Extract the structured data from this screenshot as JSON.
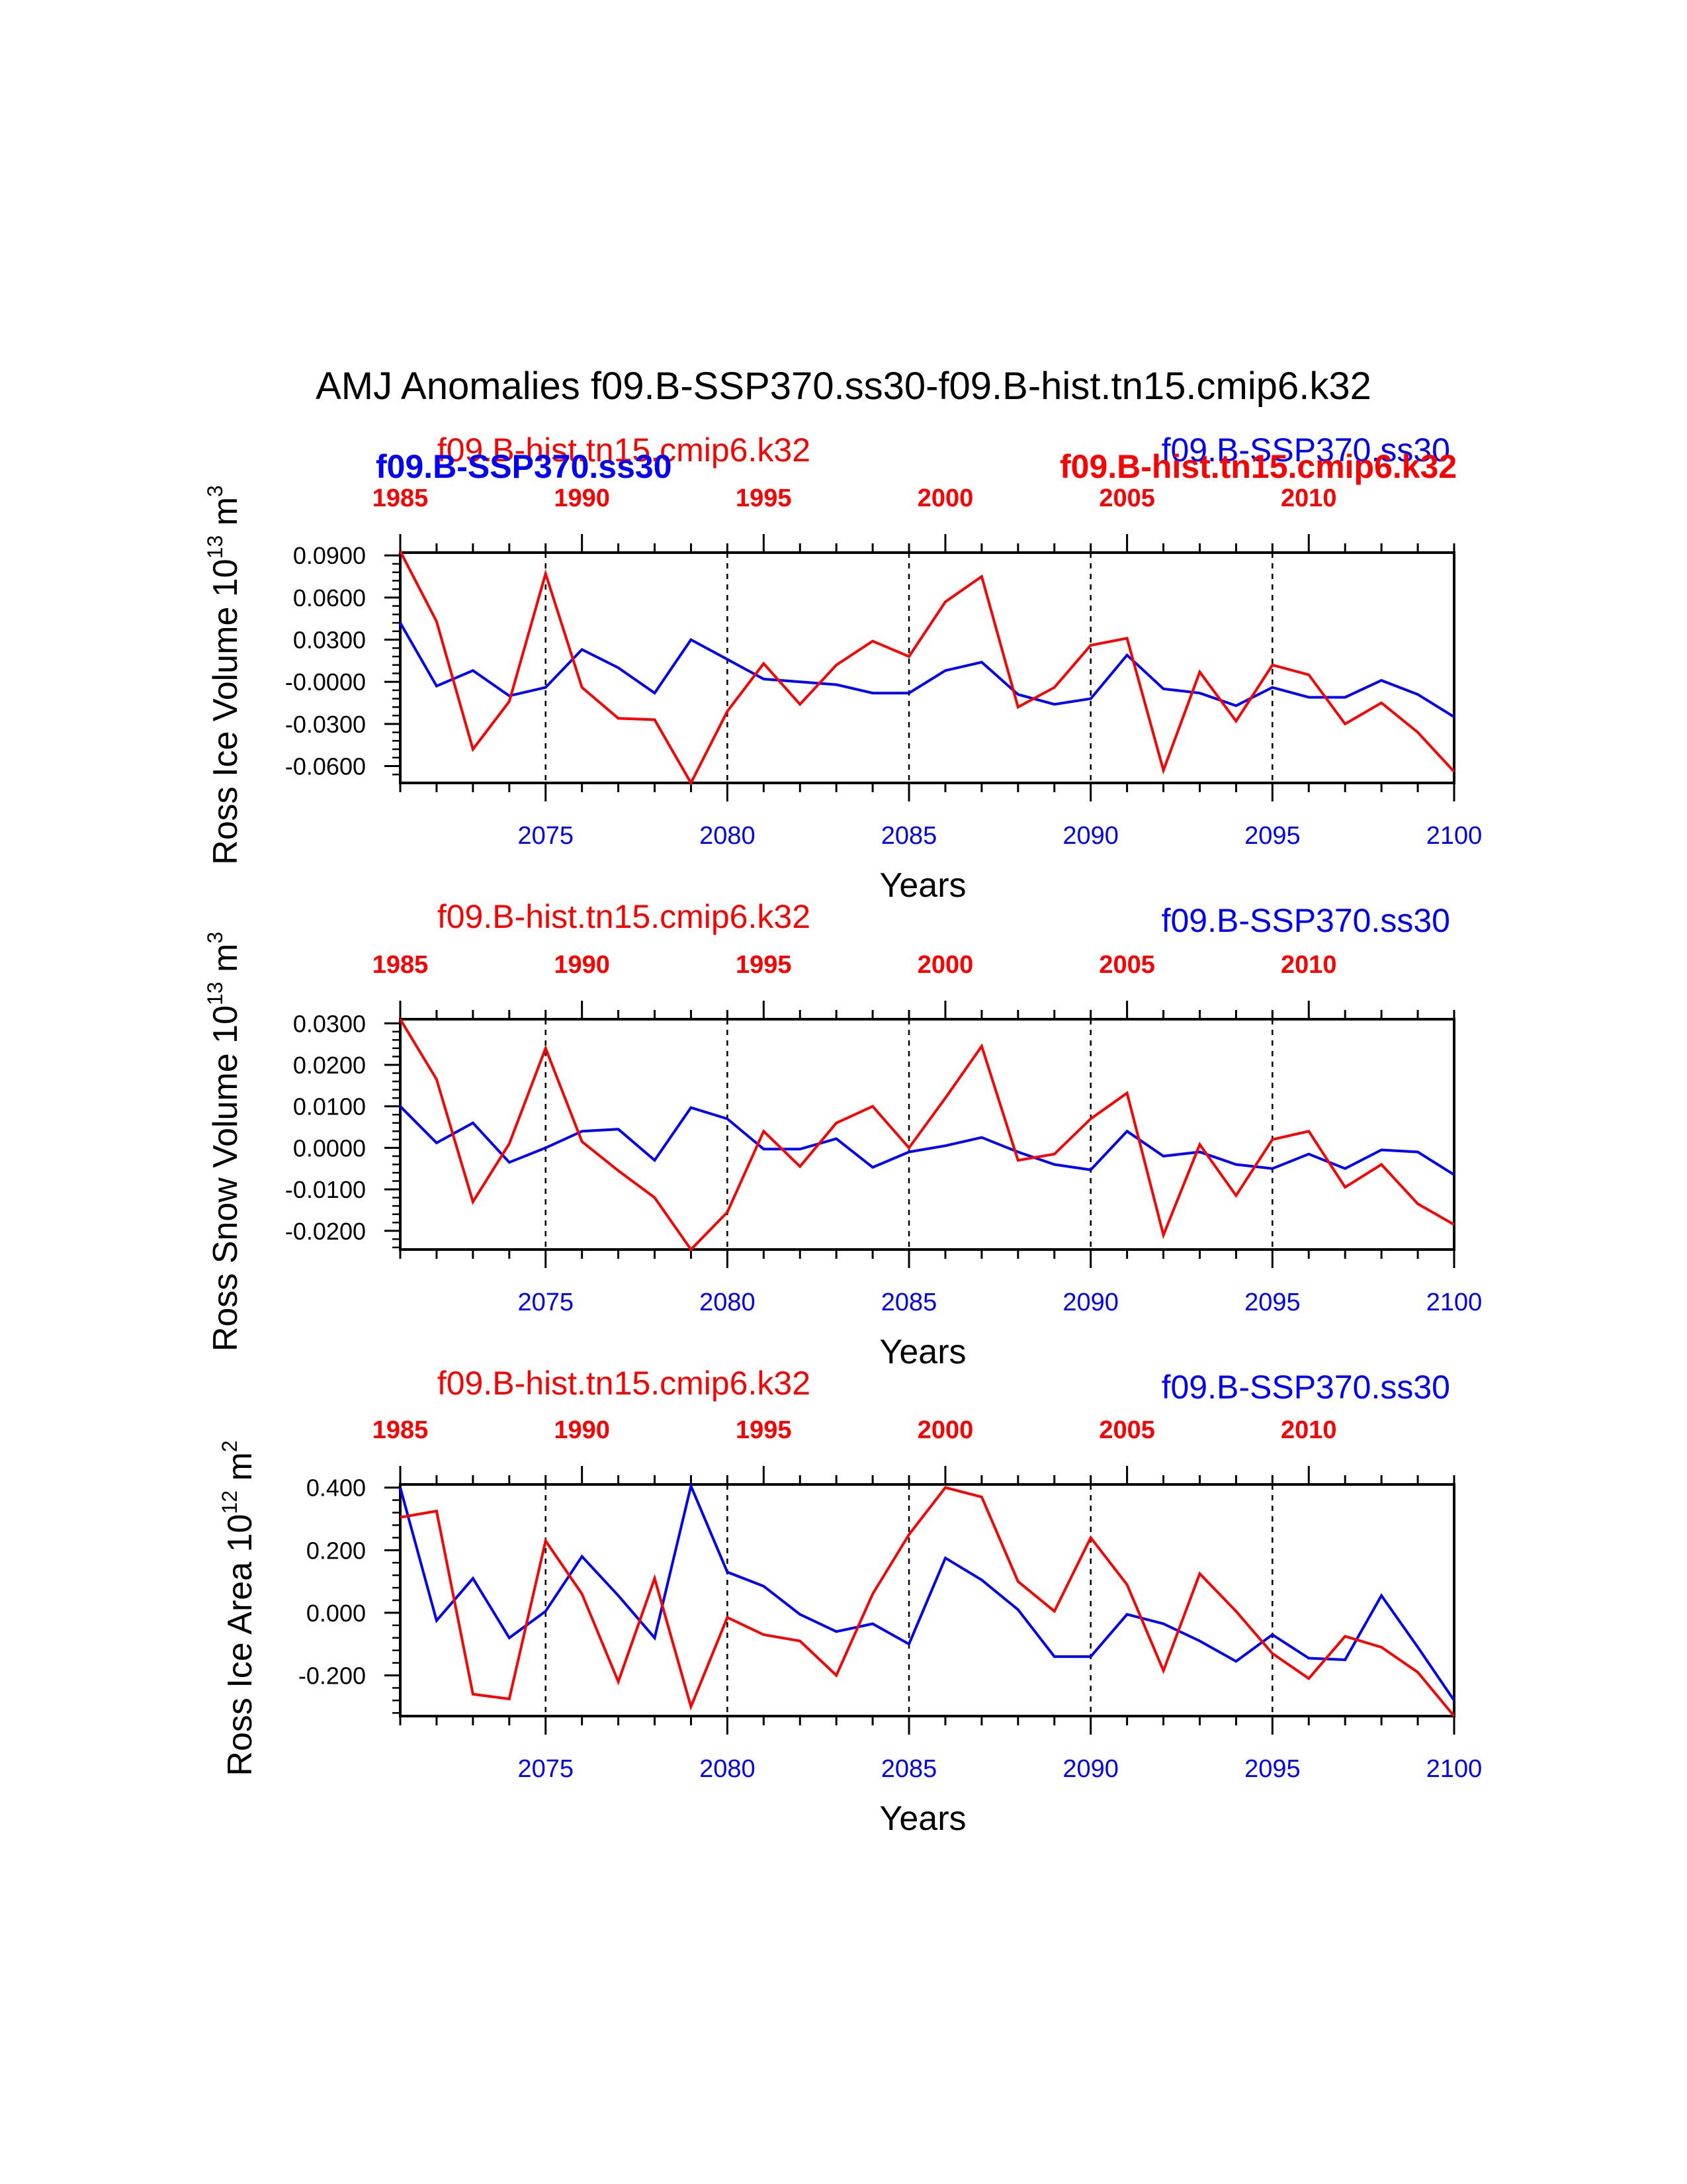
{
  "title": "AMJ Anomalies f09.B-SSP370.ss30-f09.B-hist.tn15.cmip6.k32",
  "colors": {
    "ssp": "#0000ff",
    "hist": "#ff0000",
    "axis": "#000000"
  },
  "xlabel": "Years",
  "top_axis": {
    "ticks": [
      1985,
      1990,
      1995,
      2000,
      2005,
      2010
    ],
    "labels": [
      "1985",
      "1990",
      "1995",
      "2000",
      "2005",
      "2010"
    ]
  },
  "bottom_axis": {
    "ticks": [
      2075,
      2080,
      2085,
      2090,
      2095,
      2100
    ],
    "labels": [
      "2075",
      "2080",
      "2085",
      "2090",
      "2095",
      "2100"
    ]
  },
  "chart_data": [
    {
      "type": "line",
      "ylabel_main": "Ross Ice Volume 10",
      "ylabel_exp": "13",
      "ylabel_unit": " m",
      "ylabel_unit_exp": "3",
      "ylim": [
        -0.072,
        0.092
      ],
      "yticks": [
        0.09,
        0.06,
        0.03,
        0.0,
        -0.03,
        -0.06
      ],
      "ytick_labels": [
        "0.0900",
        "0.0600",
        "0.0300",
        "-0.0000",
        "-0.0300",
        "-0.0600"
      ],
      "xlim": [
        2071,
        2100
      ],
      "x_top_lim": [
        1985,
        2014
      ],
      "legend_hist": "f09.B-hist.tn15.cmip6.k32",
      "legend_ssp": "f09.B-SSP370.ss30",
      "legend_hist_bold": "f09.B-hist.tn15.cmip6.k32",
      "legend_ssp_bold": "f09.B-SSP370.ss30",
      "series": [
        {
          "name": "f09.B-SSP370.ss30",
          "color": "#0000ff",
          "x": [
            2071,
            2072,
            2073,
            2074,
            2075,
            2076,
            2077,
            2078,
            2079,
            2080,
            2081,
            2082,
            2083,
            2084,
            2085,
            2086,
            2087,
            2088,
            2089,
            2090,
            2091,
            2092,
            2093,
            2094,
            2095,
            2096,
            2097,
            2098,
            2099,
            2100
          ],
          "values": [
            0.042,
            -0.003,
            0.008,
            -0.01,
            -0.004,
            0.023,
            0.01,
            -0.008,
            0.03,
            0.016,
            0.002,
            0.0,
            -0.002,
            -0.008,
            -0.008,
            0.008,
            0.014,
            -0.009,
            -0.016,
            -0.012,
            0.019,
            -0.005,
            -0.008,
            -0.017,
            -0.004,
            -0.011,
            -0.011,
            0.001,
            -0.009,
            -0.025
          ]
        },
        {
          "name": "f09.B-hist.tn15.cmip6.k32",
          "color": "#ff0000",
          "x": [
            2071,
            2072,
            2073,
            2074,
            2075,
            2076,
            2077,
            2078,
            2079,
            2080,
            2081,
            2082,
            2083,
            2084,
            2085,
            2086,
            2087,
            2088,
            2089,
            2090,
            2091,
            2092,
            2093,
            2094,
            2095,
            2096,
            2097,
            2098,
            2099,
            2100
          ],
          "values": [
            0.093,
            0.043,
            -0.048,
            -0.014,
            0.077,
            -0.004,
            -0.026,
            -0.027,
            -0.072,
            -0.021,
            0.013,
            -0.016,
            0.012,
            0.029,
            0.018,
            0.057,
            0.075,
            -0.018,
            -0.004,
            0.026,
            0.031,
            -0.063,
            0.007,
            -0.028,
            0.012,
            0.005,
            -0.03,
            -0.015,
            -0.036,
            -0.064
          ]
        }
      ]
    },
    {
      "type": "line",
      "ylabel_main": "Ross Snow Volume 10",
      "ylabel_exp": "13",
      "ylabel_unit": " m",
      "ylabel_unit_exp": "3",
      "ylim": [
        -0.0245,
        0.031
      ],
      "yticks": [
        0.03,
        0.02,
        0.01,
        0.0,
        -0.01,
        -0.02
      ],
      "ytick_labels": [
        "0.0300",
        "0.0200",
        "0.0100",
        "0.0000",
        "-0.0100",
        "-0.0200"
      ],
      "xlim": [
        2071,
        2100
      ],
      "x_top_lim": [
        1985,
        2014
      ],
      "legend_hist": "f09.B-hist.tn15.cmip6.k32",
      "legend_ssp": "f09.B-SSP370.ss30",
      "series": [
        {
          "name": "f09.B-SSP370.ss30",
          "color": "#0000ff",
          "x": [
            2071,
            2072,
            2073,
            2074,
            2075,
            2076,
            2077,
            2078,
            2079,
            2080,
            2081,
            2082,
            2083,
            2084,
            2085,
            2086,
            2087,
            2088,
            2089,
            2090,
            2091,
            2092,
            2093,
            2094,
            2095,
            2096,
            2097,
            2098,
            2099,
            2100
          ],
          "values": [
            0.01,
            0.0012,
            0.006,
            -0.0035,
            0.0,
            0.004,
            0.0045,
            -0.003,
            0.0097,
            0.007,
            -0.0003,
            -0.0003,
            0.0022,
            -0.0047,
            -0.001,
            0.0005,
            0.0025,
            -0.001,
            -0.004,
            -0.0053,
            0.004,
            -0.002,
            -0.001,
            -0.004,
            -0.005,
            -0.0015,
            -0.005,
            -0.0005,
            -0.001,
            -0.0065
          ]
        },
        {
          "name": "f09.B-hist.tn15.cmip6.k32",
          "color": "#ff0000",
          "x": [
            2071,
            2072,
            2073,
            2074,
            2075,
            2076,
            2077,
            2078,
            2079,
            2080,
            2081,
            2082,
            2083,
            2084,
            2085,
            2086,
            2087,
            2088,
            2089,
            2090,
            2091,
            2092,
            2093,
            2094,
            2095,
            2096,
            2097,
            2098,
            2099,
            2100
          ],
          "values": [
            0.031,
            0.0165,
            -0.013,
            0.001,
            0.024,
            0.0015,
            -0.0055,
            -0.012,
            -0.0245,
            -0.0155,
            0.004,
            -0.0045,
            0.006,
            0.01,
            0.0,
            0.012,
            0.0245,
            -0.003,
            -0.0015,
            0.007,
            0.0132,
            -0.021,
            0.0008,
            -0.0115,
            0.002,
            0.004,
            -0.0095,
            -0.004,
            -0.0135,
            -0.0185
          ]
        }
      ]
    },
    {
      "type": "line",
      "ylabel_main": "Ross Ice Area 10",
      "ylabel_exp": "12",
      "ylabel_unit": " m",
      "ylabel_unit_exp": "2",
      "ylim": [
        -0.33,
        0.41
      ],
      "yticks": [
        0.4,
        0.2,
        0.0,
        -0.2
      ],
      "ytick_labels": [
        "0.400",
        "0.200",
        "0.000",
        "-0.200"
      ],
      "xlim": [
        2071,
        2100
      ],
      "x_top_lim": [
        1985,
        2014
      ],
      "legend_hist": "f09.B-hist.tn15.cmip6.k32",
      "legend_ssp": "f09.B-SSP370.ss30",
      "series": [
        {
          "name": "f09.B-SSP370.ss30",
          "color": "#0000ff",
          "x": [
            2071,
            2072,
            2073,
            2074,
            2075,
            2076,
            2077,
            2078,
            2079,
            2080,
            2081,
            2082,
            2083,
            2084,
            2085,
            2086,
            2087,
            2088,
            2089,
            2090,
            2091,
            2092,
            2093,
            2094,
            2095,
            2096,
            2097,
            2098,
            2099,
            2100
          ],
          "values": [
            0.4,
            -0.025,
            0.11,
            -0.08,
            0.005,
            0.18,
            0.055,
            -0.08,
            0.405,
            0.13,
            0.085,
            -0.005,
            -0.06,
            -0.035,
            -0.1,
            0.175,
            0.105,
            0.01,
            -0.14,
            -0.14,
            -0.005,
            -0.035,
            -0.09,
            -0.155,
            -0.07,
            -0.145,
            -0.15,
            0.055,
            -0.11,
            -0.28
          ]
        },
        {
          "name": "f09.B-hist.tn15.cmip6.k32",
          "color": "#ff0000",
          "x": [
            2071,
            2072,
            2073,
            2074,
            2075,
            2076,
            2077,
            2078,
            2079,
            2080,
            2081,
            2082,
            2083,
            2084,
            2085,
            2086,
            2087,
            2088,
            2089,
            2090,
            2091,
            2092,
            2093,
            2094,
            2095,
            2096,
            2097,
            2098,
            2099,
            2100
          ],
          "values": [
            0.305,
            0.325,
            -0.26,
            -0.275,
            0.23,
            0.06,
            -0.22,
            0.11,
            -0.3,
            -0.015,
            -0.07,
            -0.09,
            -0.2,
            0.06,
            0.25,
            0.4,
            0.37,
            0.1,
            0.005,
            0.24,
            0.09,
            -0.185,
            0.125,
            0.005,
            -0.13,
            -0.21,
            -0.075,
            -0.11,
            -0.19,
            -0.33
          ]
        }
      ]
    }
  ]
}
